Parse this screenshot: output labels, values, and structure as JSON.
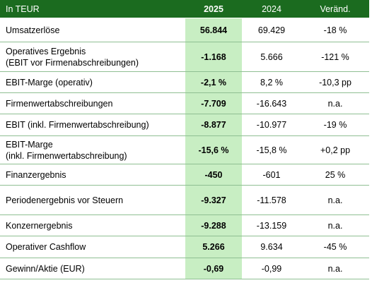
{
  "header": {
    "unit_label": "In TEUR",
    "col_2025": "2025",
    "col_2024": "2024",
    "col_change": "Veränd."
  },
  "rows": [
    {
      "label": "Umsatzerlöse",
      "v2025": "56.844",
      "v2024": "69.429",
      "change": "-18 %"
    },
    {
      "label": "Operatives Ergebnis\n(EBIT vor Firmenabschreibungen)",
      "v2025": "-1.168",
      "v2024": "5.666",
      "change": "-121 %"
    },
    {
      "label": "EBIT-Marge (operativ)",
      "v2025": "-2,1 %",
      "v2024": "8,2 %",
      "change": "-10,3 pp"
    },
    {
      "label": "Firmenwertabschreibungen",
      "v2025": "-7.709",
      "v2024": "-16.643",
      "change": "n.a."
    },
    {
      "label": "EBIT (inkl. Firmenwertabschreibung)",
      "v2025": "-8.877",
      "v2024": "-10.977",
      "change": "-19 %"
    },
    {
      "label": "EBIT-Marge\n(inkl. Firmenwertabschreibung)",
      "v2025": "-15,6 %",
      "v2024": "-15,8 %",
      "change": "+0,2 pp"
    },
    {
      "label": "Finanzergebnis",
      "v2025": "-450",
      "v2024": "-601",
      "change": "25 %"
    },
    {
      "label": "Periodenergebnis vor Steuern",
      "v2025": "-9.327",
      "v2024": "-11.578",
      "change": "n.a."
    },
    {
      "label": "Konzernergebnis",
      "v2025": "-9.288",
      "v2024": "-13.159",
      "change": "n.a."
    },
    {
      "label": "Operativer Cashflow",
      "v2025": "5.266",
      "v2024": "9.634",
      "change": "-45 %"
    },
    {
      "label": "Gewinn/Aktie (EUR)",
      "v2025": "-0,69",
      "v2024": "-0,99",
      "change": "n.a."
    }
  ],
  "colors": {
    "header_bg": "#1b6b1f",
    "highlight_2025": "#c8eec3",
    "row_border": "#8fbf92"
  }
}
